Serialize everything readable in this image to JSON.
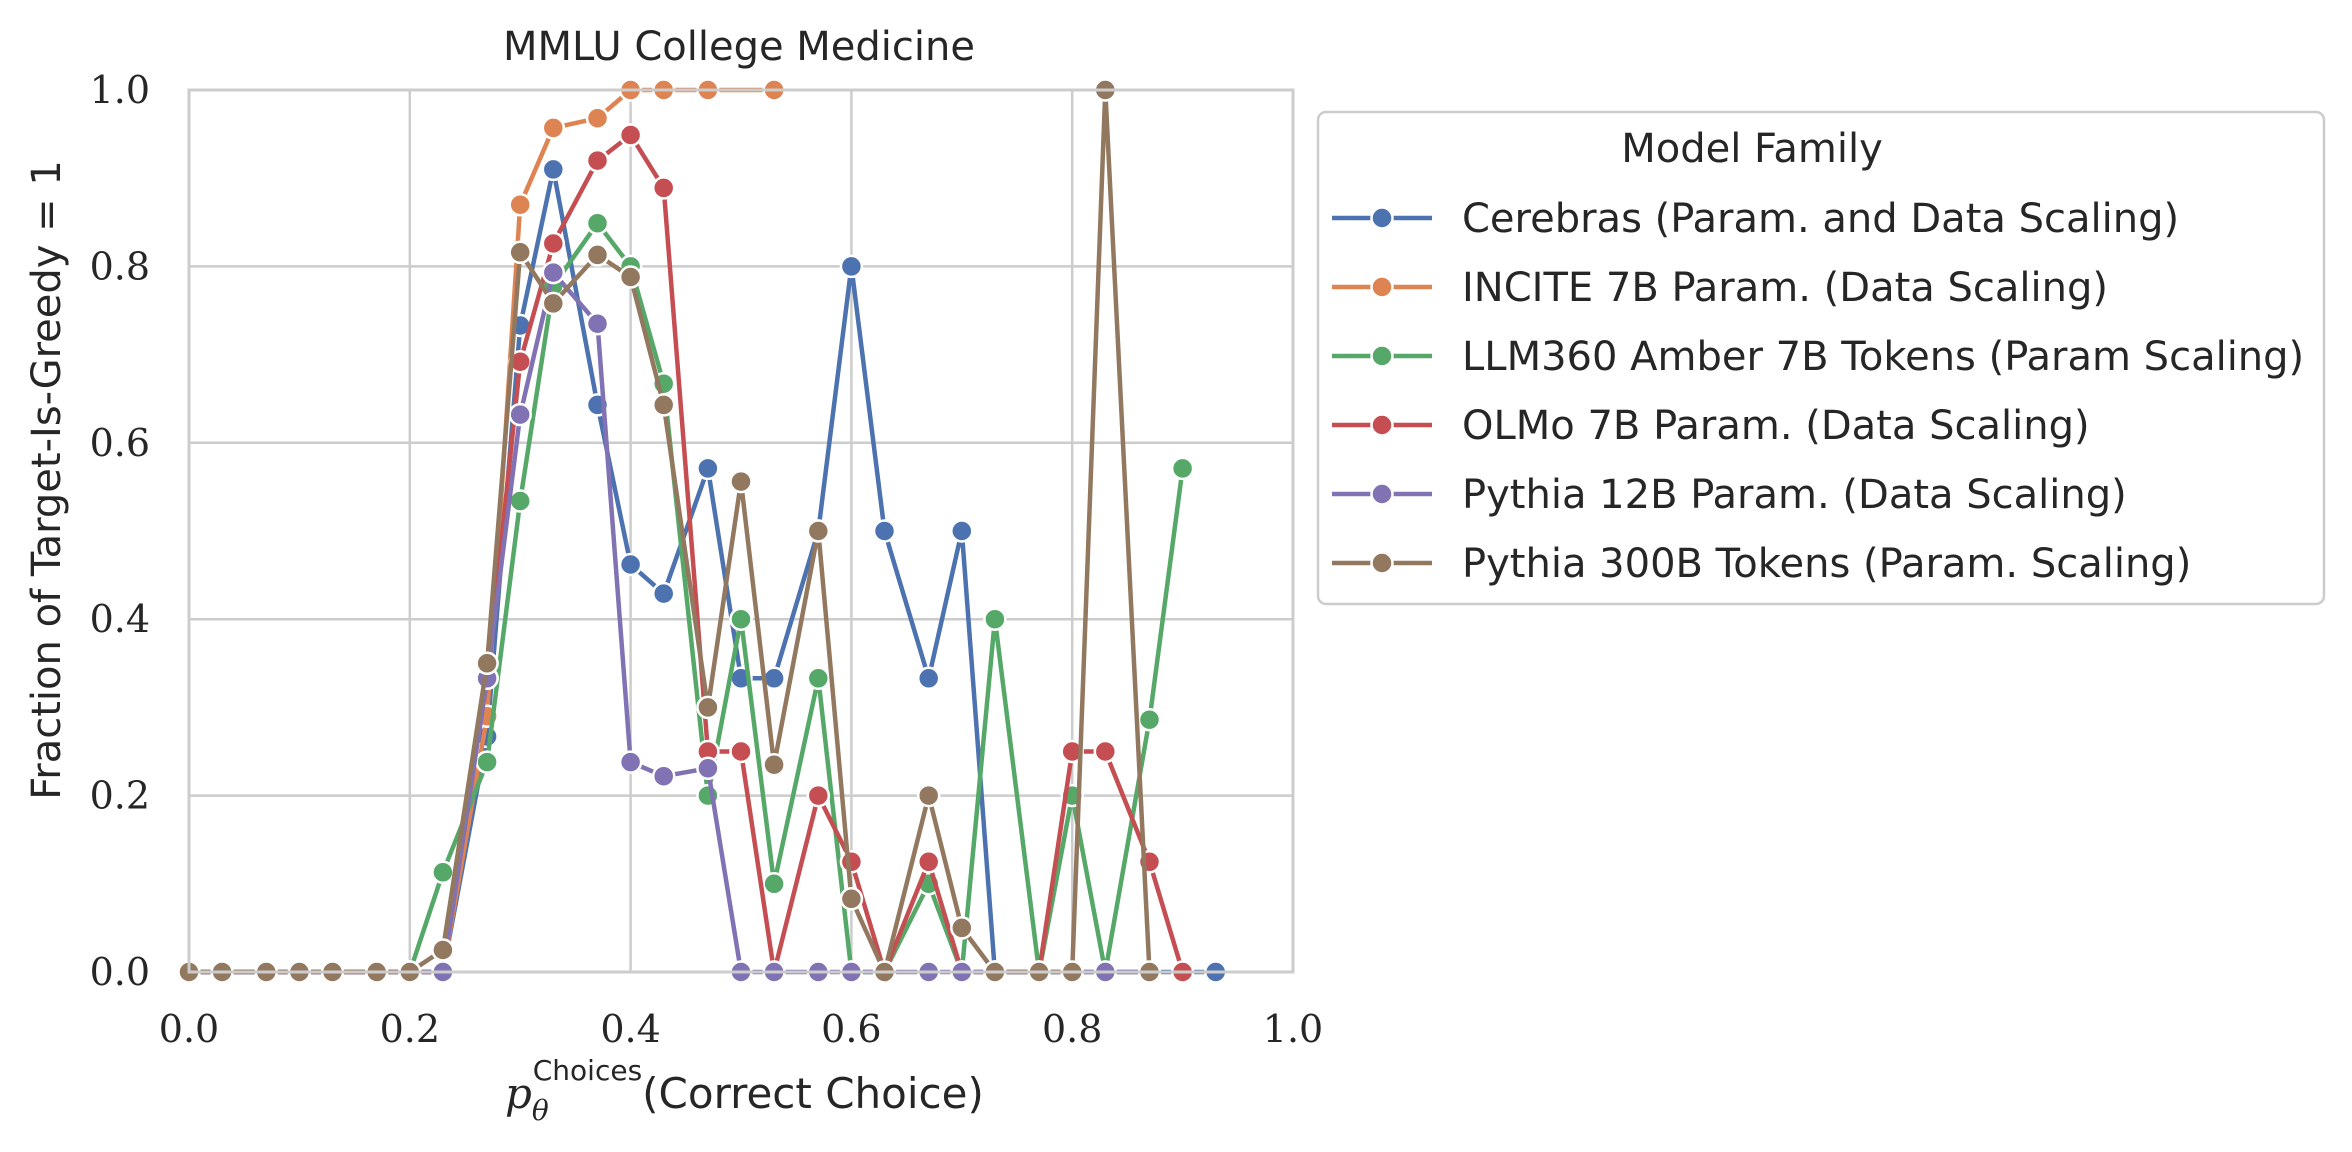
{
  "chart_data": {
    "type": "line",
    "title": "MMLU College Medicine",
    "xlabel_math": "p",
    "xlabel_sub": "θ",
    "xlabel_sup": "Choices",
    "xlabel_text": "(Correct Choice)",
    "ylabel": "Fraction of Target-Is-Greedy = 1",
    "xlim": [
      0.0,
      1.0
    ],
    "ylim": [
      0.0,
      1.0
    ],
    "xticks": [
      "0.0",
      "0.2",
      "0.4",
      "0.6",
      "0.8",
      "1.0"
    ],
    "yticks": [
      "0.0",
      "0.2",
      "0.4",
      "0.6",
      "0.8",
      "1.0"
    ],
    "grid": true,
    "legend": {
      "title": "Model Family",
      "placement": "outside-right-top"
    },
    "series": [
      {
        "name": "Cerebras (Param. and Data Scaling)",
        "color": "#4c72b0",
        "points": [
          [
            0.0,
            0.0
          ],
          [
            0.03,
            0.0
          ],
          [
            0.07,
            0.0
          ],
          [
            0.1,
            0.0
          ],
          [
            0.13,
            0.0
          ],
          [
            0.17,
            0.0
          ],
          [
            0.2,
            0.0
          ],
          [
            0.23,
            0.0
          ],
          [
            0.27,
            0.267
          ],
          [
            0.3,
            0.733
          ],
          [
            0.33,
            0.91
          ],
          [
            0.37,
            0.643
          ],
          [
            0.4,
            0.462
          ],
          [
            0.43,
            0.429
          ],
          [
            0.47,
            0.571
          ],
          [
            0.5,
            0.333
          ],
          [
            0.53,
            0.333
          ],
          [
            0.57,
            0.5
          ],
          [
            0.6,
            0.8
          ],
          [
            0.63,
            0.5
          ],
          [
            0.67,
            0.333
          ],
          [
            0.7,
            0.5
          ],
          [
            0.73,
            0.0
          ],
          [
            0.77,
            0.0
          ],
          [
            0.8,
            0.0
          ],
          [
            0.83,
            0.0
          ],
          [
            0.87,
            0.0
          ],
          [
            0.9,
            0.0
          ],
          [
            0.93,
            0.0
          ]
        ]
      },
      {
        "name": "INCITE 7B Param. (Data Scaling)",
        "color": "#dd8452",
        "points": [
          [
            0.0,
            0.0
          ],
          [
            0.03,
            0.0
          ],
          [
            0.07,
            0.0
          ],
          [
            0.1,
            0.0
          ],
          [
            0.13,
            0.0
          ],
          [
            0.17,
            0.0
          ],
          [
            0.2,
            0.0
          ],
          [
            0.23,
            0.0
          ],
          [
            0.27,
            0.29
          ],
          [
            0.3,
            0.87
          ],
          [
            0.33,
            0.957
          ],
          [
            0.37,
            0.968
          ],
          [
            0.4,
            1.0
          ],
          [
            0.43,
            1.0
          ],
          [
            0.47,
            1.0
          ],
          [
            0.53,
            1.0
          ]
        ]
      },
      {
        "name": "LLM360 Amber 7B Tokens (Param Scaling)",
        "color": "#55a868",
        "points": [
          [
            0.0,
            0.0
          ],
          [
            0.03,
            0.0
          ],
          [
            0.07,
            0.0
          ],
          [
            0.1,
            0.0
          ],
          [
            0.13,
            0.0
          ],
          [
            0.17,
            0.0
          ],
          [
            0.2,
            0.0
          ],
          [
            0.23,
            0.113
          ],
          [
            0.27,
            0.238
          ],
          [
            0.3,
            0.534
          ],
          [
            0.33,
            0.778
          ],
          [
            0.37,
            0.849
          ],
          [
            0.4,
            0.8
          ],
          [
            0.43,
            0.667
          ],
          [
            0.47,
            0.2
          ],
          [
            0.5,
            0.4
          ],
          [
            0.53,
            0.1
          ],
          [
            0.57,
            0.333
          ],
          [
            0.6,
            0.0
          ],
          [
            0.63,
            0.0
          ],
          [
            0.67,
            0.1
          ],
          [
            0.7,
            0.0
          ],
          [
            0.73,
            0.4
          ],
          [
            0.77,
            0.0
          ],
          [
            0.8,
            0.2
          ],
          [
            0.83,
            0.0
          ],
          [
            0.87,
            0.286
          ],
          [
            0.9,
            0.571
          ]
        ]
      },
      {
        "name": "OLMo 7B Param. (Data Scaling)",
        "color": "#c44e52",
        "points": [
          [
            0.0,
            0.0
          ],
          [
            0.03,
            0.0
          ],
          [
            0.07,
            0.0
          ],
          [
            0.1,
            0.0
          ],
          [
            0.13,
            0.0
          ],
          [
            0.17,
            0.0
          ],
          [
            0.2,
            0.0
          ],
          [
            0.23,
            0.0
          ],
          [
            0.27,
            0.333
          ],
          [
            0.3,
            0.692
          ],
          [
            0.33,
            0.826
          ],
          [
            0.37,
            0.92
          ],
          [
            0.4,
            0.949
          ],
          [
            0.43,
            0.889
          ],
          [
            0.47,
            0.25
          ],
          [
            0.5,
            0.25
          ],
          [
            0.53,
            0.0
          ],
          [
            0.57,
            0.2
          ],
          [
            0.6,
            0.125
          ],
          [
            0.63,
            0.0
          ],
          [
            0.67,
            0.125
          ],
          [
            0.7,
            0.0
          ],
          [
            0.73,
            0.0
          ],
          [
            0.77,
            0.0
          ],
          [
            0.8,
            0.25
          ],
          [
            0.83,
            0.25
          ],
          [
            0.87,
            0.125
          ],
          [
            0.9,
            0.0
          ]
        ]
      },
      {
        "name": "Pythia 12B Param. (Data Scaling)",
        "color": "#8172b3",
        "points": [
          [
            0.0,
            0.0
          ],
          [
            0.03,
            0.0
          ],
          [
            0.07,
            0.0
          ],
          [
            0.1,
            0.0
          ],
          [
            0.13,
            0.0
          ],
          [
            0.17,
            0.0
          ],
          [
            0.2,
            0.0
          ],
          [
            0.23,
            0.0
          ],
          [
            0.27,
            0.333
          ],
          [
            0.3,
            0.632
          ],
          [
            0.33,
            0.793
          ],
          [
            0.37,
            0.735
          ],
          [
            0.4,
            0.238
          ],
          [
            0.43,
            0.222
          ],
          [
            0.47,
            0.231
          ],
          [
            0.5,
            0.0
          ],
          [
            0.53,
            0.0
          ],
          [
            0.57,
            0.0
          ],
          [
            0.6,
            0.0
          ],
          [
            0.63,
            0.0
          ],
          [
            0.67,
            0.0
          ],
          [
            0.7,
            0.0
          ],
          [
            0.73,
            0.0
          ],
          [
            0.77,
            0.0
          ],
          [
            0.8,
            0.0
          ],
          [
            0.83,
            0.0
          ],
          [
            0.87,
            0.0
          ]
        ]
      },
      {
        "name": "Pythia 300B Tokens (Param. Scaling)",
        "color": "#937860",
        "points": [
          [
            0.0,
            0.0
          ],
          [
            0.03,
            0.0
          ],
          [
            0.07,
            0.0
          ],
          [
            0.1,
            0.0
          ],
          [
            0.13,
            0.0
          ],
          [
            0.17,
            0.0
          ],
          [
            0.2,
            0.0
          ],
          [
            0.23,
            0.025
          ],
          [
            0.27,
            0.35
          ],
          [
            0.3,
            0.816
          ],
          [
            0.33,
            0.758
          ],
          [
            0.37,
            0.813
          ],
          [
            0.4,
            0.788
          ],
          [
            0.43,
            0.643
          ],
          [
            0.47,
            0.3
          ],
          [
            0.5,
            0.556
          ],
          [
            0.53,
            0.235
          ],
          [
            0.57,
            0.5
          ],
          [
            0.6,
            0.083
          ],
          [
            0.63,
            0.0
          ],
          [
            0.67,
            0.2
          ],
          [
            0.7,
            0.05
          ],
          [
            0.73,
            0.0
          ],
          [
            0.77,
            0.0
          ],
          [
            0.8,
            0.0
          ],
          [
            0.83,
            1.0
          ],
          [
            0.87,
            0.0
          ]
        ]
      }
    ]
  }
}
